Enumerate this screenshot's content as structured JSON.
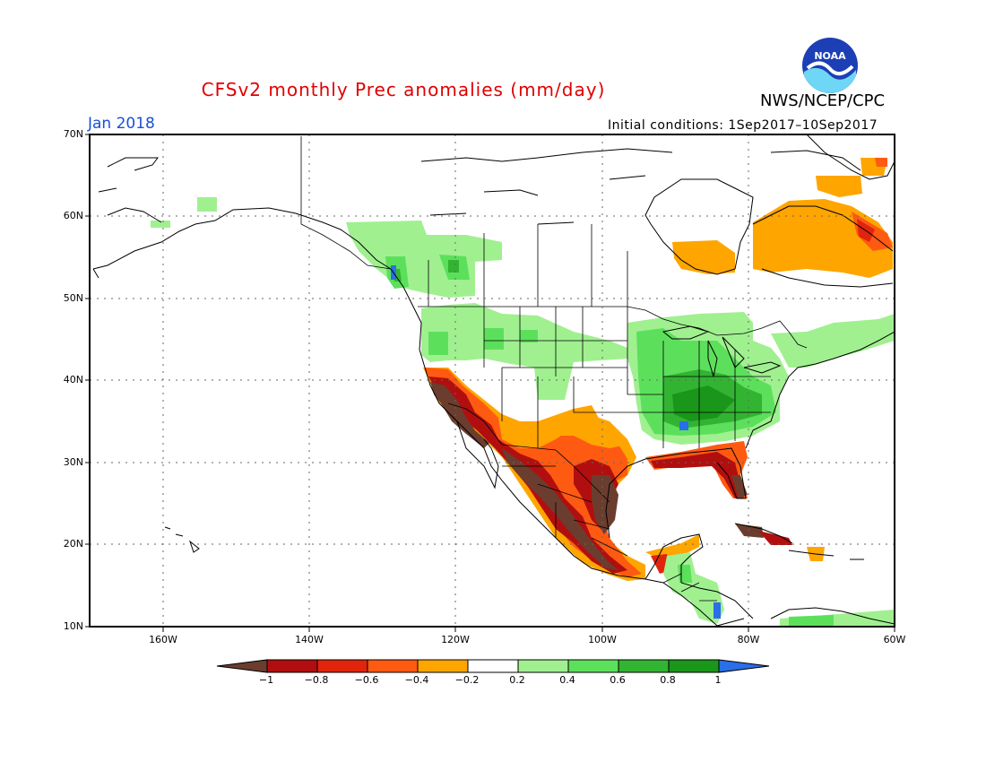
{
  "header": {
    "title": "CFSv2 monthly Prec anomalies (mm/day)",
    "organization": "NWS/NCEP/CPC",
    "logo_text": "NOAA",
    "month": "Jan 2018",
    "initial_conditions": "Initial conditions: 1Sep2017–10Sep2017"
  },
  "map": {
    "lat_labels": [
      "70N",
      "60N",
      "50N",
      "40N",
      "30N",
      "20N",
      "10N"
    ],
    "lon_labels": [
      "160W",
      "140W",
      "120W",
      "100W",
      "80W",
      "60W"
    ],
    "lon_range": [
      -170,
      -60
    ],
    "lat_range": [
      10,
      70
    ]
  },
  "colorbar": {
    "labels": [
      "−1",
      "−0.8",
      "−0.6",
      "−0.4",
      "−0.2",
      "0.2",
      "0.4",
      "0.6",
      "0.8",
      "1"
    ],
    "colors": [
      "#6b3d2e",
      "#b10f0f",
      "#e0250c",
      "#ff5a12",
      "#ffa500",
      "#ffffff",
      "#a0f090",
      "#5ce05c",
      "#32b432",
      "#1a961a",
      "#2a6ee8"
    ]
  }
}
